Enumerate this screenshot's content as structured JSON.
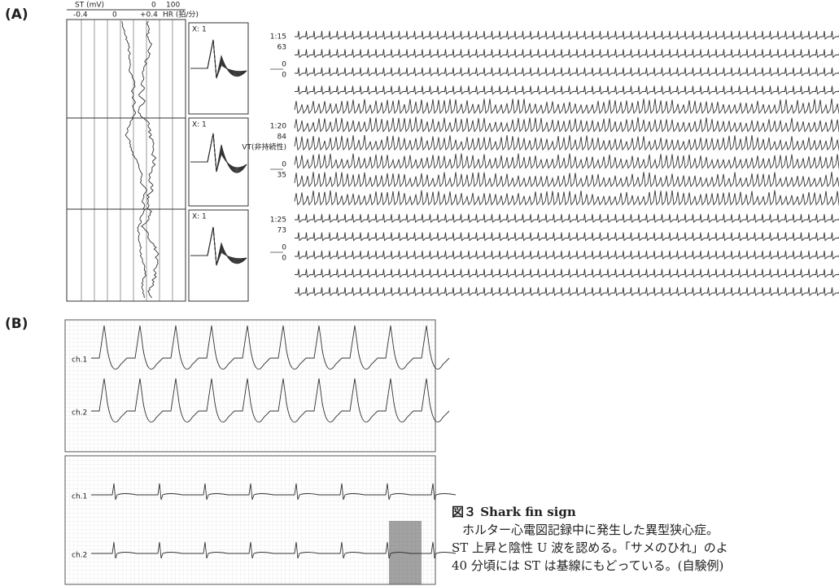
{
  "figure": {
    "panel_a": {
      "label": "(A)",
      "header": {
        "st_label": "ST (mV)",
        "hr_ticks": [
          "0",
          "100"
        ],
        "st_ticks": [
          "-0.4",
          "0",
          "+0.4"
        ],
        "hr_label": "HR (拍/分)"
      },
      "complex_labels": [
        "X: 1",
        "X: 1",
        "X: 1"
      ],
      "strip_labels": [
        [
          "1:15",
          "63",
          "0",
          "0"
        ],
        [
          "1:20",
          "84",
          "VT(非持続性)",
          "0",
          "35"
        ],
        [
          "1:25",
          "73",
          "0",
          "0"
        ]
      ]
    },
    "panel_b": {
      "label": "(B)",
      "channels": [
        "ch.1",
        "ch.2",
        "ch.1",
        "ch.2"
      ]
    },
    "caption": {
      "title": "図３ Shark fin sign",
      "lines": [
        "ホルター心電図記録中に発生した異型狭心症。",
        "ST 上昇と陰性 U 波を認める。「サメのひれ」のよ",
        "40 分頃には ST は基線にもどっている。(自験例)"
      ]
    }
  }
}
